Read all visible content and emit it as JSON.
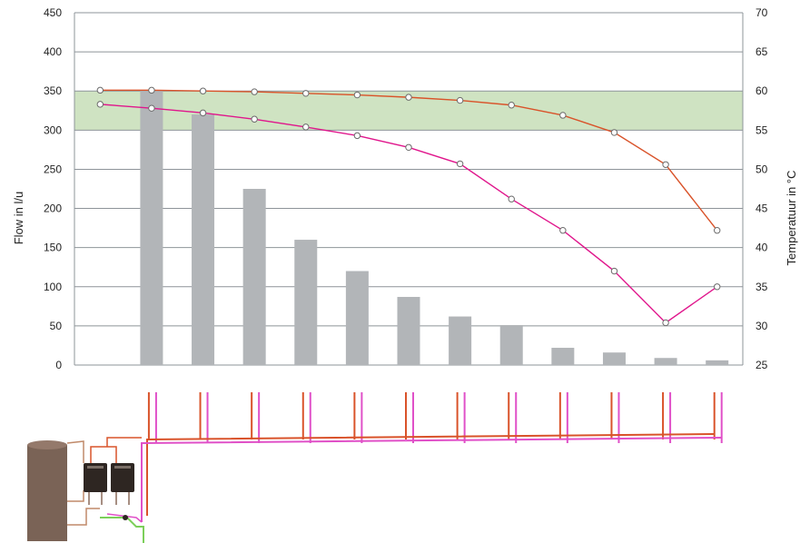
{
  "chart_data": {
    "type": "bar",
    "xlabel": "",
    "ylabel": "Flow in l/u",
    "y2label": "Temperatuur in °C",
    "ylim": [
      0,
      450
    ],
    "y2lim": [
      25,
      70
    ],
    "y_ticks": [
      "0",
      "50",
      "100",
      "150",
      "200",
      "250",
      "300",
      "350",
      "400",
      "450"
    ],
    "y2_ticks": [
      "25",
      "30",
      "35",
      "40",
      "45",
      "50",
      "55",
      "60",
      "65",
      "70"
    ],
    "grid": "horizontal",
    "comfort_band": {
      "y_from": 300,
      "y_to": 350,
      "color": "#cfe3c2"
    },
    "categories": [
      "",
      "",
      "",
      "",
      "",
      "",
      "",
      "",
      "",
      "",
      "",
      "",
      ""
    ],
    "series": [
      {
        "kind": "bar",
        "axis": "left",
        "color": "#b2b5b8",
        "values": [
          null,
          350,
          320,
          225,
          160,
          120,
          87,
          62,
          51,
          22,
          16,
          9,
          6
        ]
      },
      {
        "kind": "line",
        "axis": "right",
        "color": "#d9532a",
        "values": [
          60.1,
          60.1,
          60.0,
          59.9,
          59.7,
          59.5,
          59.2,
          58.8,
          58.2,
          56.9,
          54.7,
          50.6,
          42.2
        ]
      },
      {
        "kind": "line",
        "axis": "right",
        "color": "#e0168c",
        "values": [
          58.3,
          57.8,
          57.2,
          56.4,
          55.4,
          54.3,
          52.8,
          50.7,
          46.2,
          42.2,
          37.0,
          30.4,
          35.0
        ]
      }
    ]
  },
  "schematic": {
    "hot_pipe_color": "#d9532a",
    "circulation_pipe_color": "#e050c8",
    "cold_pipe_color": "#7ccf5a",
    "tank_color": "#7a6356",
    "heater_color": "#2e2622"
  }
}
